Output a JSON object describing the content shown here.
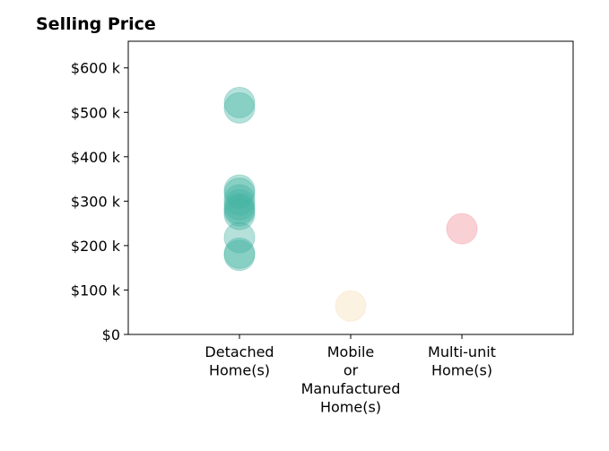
{
  "chart_data": {
    "type": "scatter",
    "title": "Selling Price",
    "categories": [
      "Detached\nHome(s)",
      "Mobile\nor\nManufactured\nHome(s)",
      "Multi-unit\nHome(s)"
    ],
    "y_ticks": [
      "$0",
      "$100 k",
      "$200 k",
      "$300 k",
      "$400 k",
      "$500 k",
      "$600 k"
    ],
    "ylim": [
      0,
      660000
    ],
    "grid": false,
    "series": [
      {
        "category": "Detached\nHome(s)",
        "color": "#45b5a3",
        "values": [
          522000,
          510000,
          325000,
          318000,
          303000,
          292000,
          283000,
          278000,
          270000,
          218000,
          183000,
          178000
        ]
      },
      {
        "category": "Mobile\nor\nManufactured\nHome(s)",
        "color": "#f5deb3",
        "values": [
          64000
        ]
      },
      {
        "category": "Multi-unit\nHome(s)",
        "color": "#f08c94",
        "values": [
          238000
        ]
      }
    ]
  }
}
